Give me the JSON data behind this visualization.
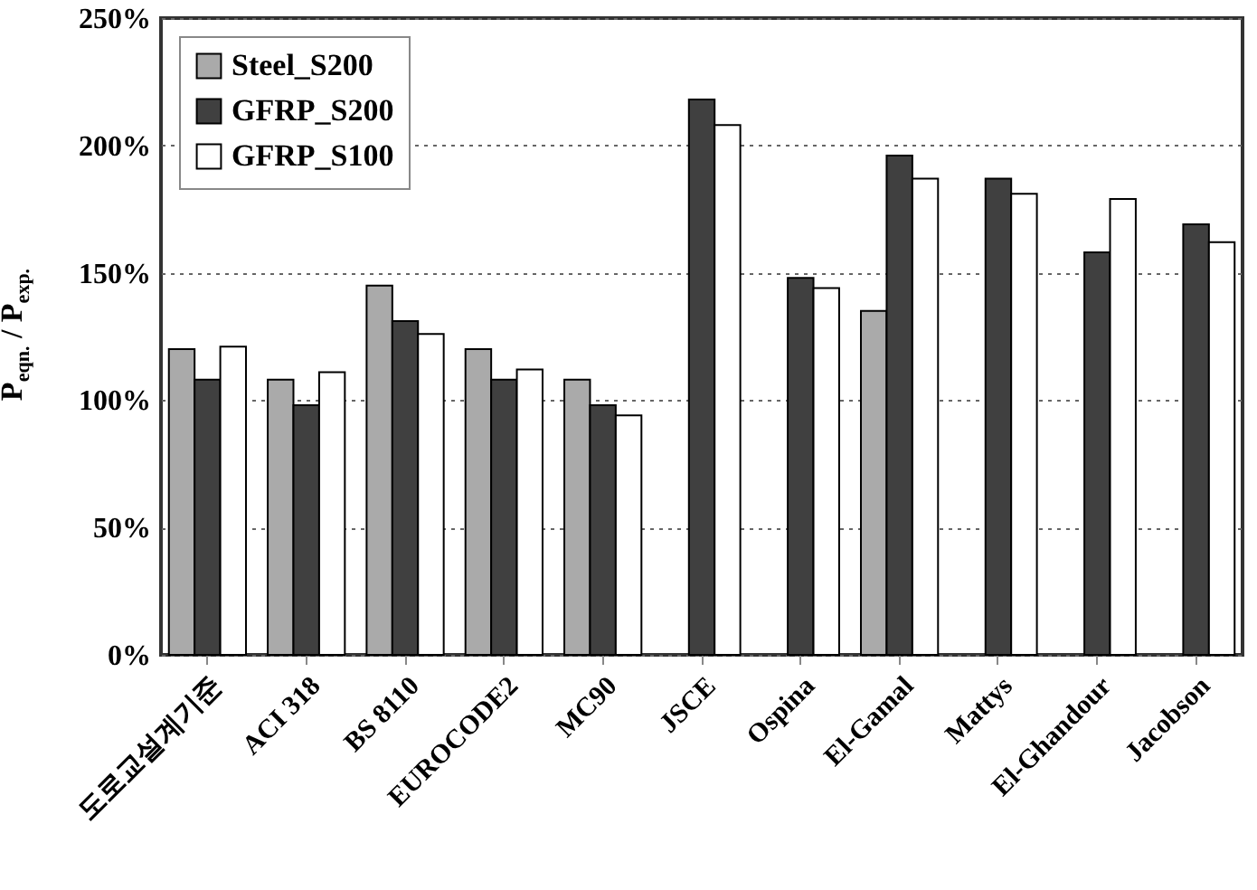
{
  "chart_data": {
    "type": "bar",
    "ylabel": "P$_{eqn.}$ / P$_{exp.}$",
    "categories": [
      "도로교설계기준",
      "ACI 318",
      "BS 8110",
      "EUROCODE2",
      "MC90",
      "JSCE",
      "Ospina",
      "El-Gamal",
      "Mattys",
      "El-Ghandour",
      "Jacobson"
    ],
    "series": [
      {
        "name": "Steel_S200",
        "color": "#aaaaaa",
        "values": [
          120,
          108,
          145,
          120,
          108,
          null,
          null,
          135,
          null,
          null,
          null
        ]
      },
      {
        "name": "GFRP_S200",
        "color": "#404040",
        "values": [
          108,
          98,
          131,
          108,
          98,
          218,
          148,
          196,
          187,
          158,
          169
        ]
      },
      {
        "name": "GFRP_S100",
        "color": "#ffffff",
        "values": [
          121,
          111,
          126,
          112,
          94,
          208,
          144,
          187,
          181,
          179,
          162
        ]
      }
    ],
    "ylim": [
      0,
      250
    ],
    "yticks": [
      {
        "value": 0,
        "label": "0%"
      },
      {
        "value": 50,
        "label": "50%"
      },
      {
        "value": 100,
        "label": "100%"
      },
      {
        "value": 150,
        "label": "150%"
      },
      {
        "value": 200,
        "label": "200%"
      },
      {
        "value": 250,
        "label": "250%"
      }
    ],
    "grid": "y",
    "legend": "top left"
  }
}
